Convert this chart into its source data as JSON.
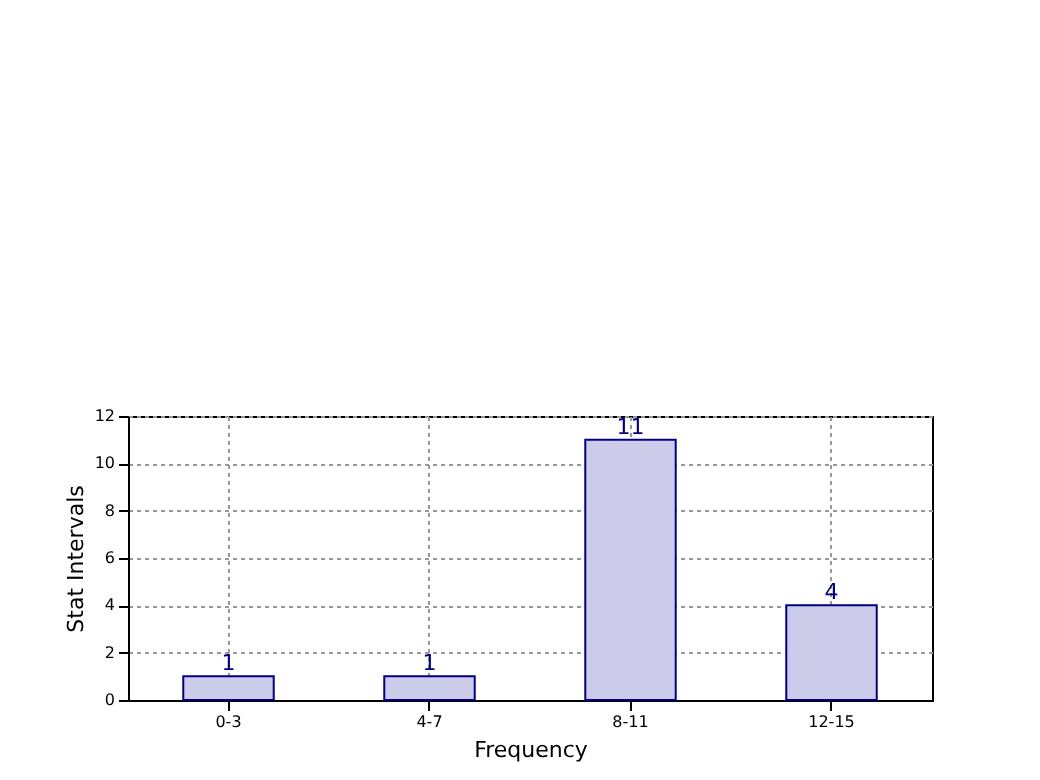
{
  "chart_data": {
    "type": "bar",
    "xlabel": "Frequency",
    "ylabel": "Stat Intervals",
    "categories": [
      "0-3",
      "4-7",
      "8-11",
      "12-15"
    ],
    "values": [
      1,
      1,
      11,
      4
    ],
    "color": "#ccccea",
    "ylim": [
      0,
      12
    ],
    "yticks": [
      0,
      2,
      4,
      6,
      8,
      10,
      12
    ],
    "grid": true,
    "data_labels": true
  }
}
